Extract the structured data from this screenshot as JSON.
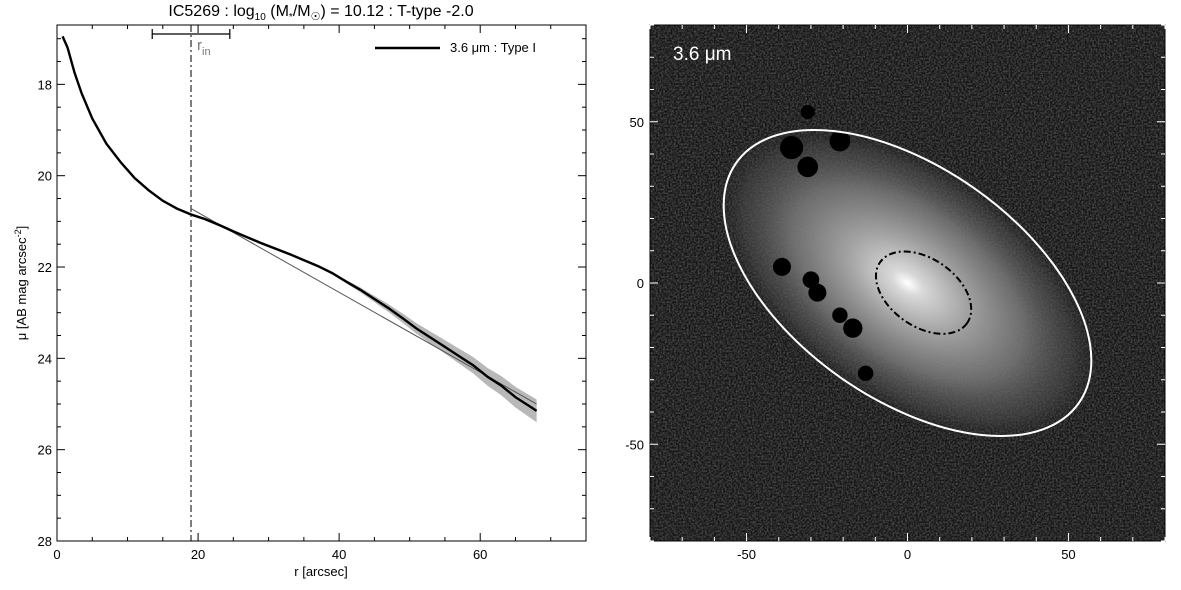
{
  "chart_data": [
    {
      "type": "line",
      "title_main": "IC5269 : log",
      "title_sub": "10",
      "title_rest_a": " (M",
      "title_star": "*",
      "title_rest_b": "/M",
      "title_sun": "☉",
      "title_rest_c": ") = 10.12 : T-type -2.0",
      "xlabel": "r [arcsec]",
      "ylabel_main": "μ [AB mag arcsec",
      "ylabel_sup": "-2",
      "ylabel_end": "]",
      "xlim": [
        0,
        75
      ],
      "ylim": [
        28,
        16.7
      ],
      "y_inverted": true,
      "xticks": [
        0,
        20,
        40,
        60
      ],
      "yticks": [
        18,
        20,
        22,
        24,
        26,
        28
      ],
      "legend": {
        "label": "3.6 μm : Type I",
        "position": "top-right"
      },
      "r_in": {
        "value": 19,
        "label_main": "r",
        "label_sub": "in",
        "range": [
          13.5,
          24.5
        ]
      },
      "series": [
        {
          "name": "3.6 μm : Type I",
          "x": [
            0.8,
            1.5,
            2.5,
            3.5,
            5,
            7,
            9,
            11,
            13,
            15,
            17,
            19,
            21,
            23,
            25,
            27,
            29,
            31,
            33,
            35,
            37,
            39,
            41,
            43,
            45,
            47,
            49,
            51,
            53,
            55,
            57,
            59,
            61,
            63,
            65,
            67,
            68
          ],
          "values": [
            16.95,
            17.2,
            17.75,
            18.2,
            18.75,
            19.3,
            19.7,
            20.05,
            20.32,
            20.55,
            20.72,
            20.85,
            20.95,
            21.08,
            21.22,
            21.35,
            21.48,
            21.6,
            21.72,
            21.85,
            21.98,
            22.13,
            22.32,
            22.5,
            22.7,
            22.9,
            23.12,
            23.35,
            23.55,
            23.75,
            23.95,
            24.15,
            24.4,
            24.6,
            24.85,
            25.05,
            25.15
          ]
        }
      ],
      "fit_line": {
        "x": [
          19,
          68
        ],
        "values": [
          20.72,
          25.0
        ]
      }
    },
    {
      "type": "heatmap",
      "label": "3.6 μm",
      "xlim": [
        -80,
        80
      ],
      "ylim": [
        -80,
        80
      ],
      "xticks": [
        -50,
        0,
        50
      ],
      "yticks": [
        50,
        0,
        -50
      ],
      "outer_ellipse": {
        "cx": 0,
        "cy": 0,
        "a": 65,
        "b": 36,
        "pa_deg": -35,
        "color": "#ffffff"
      },
      "inner_ellipse": {
        "cx": 5,
        "cy": -3,
        "a": 16.5,
        "b": 10.5,
        "pa_deg": -35,
        "style": "dash-dot"
      },
      "masks": [
        {
          "x": -36,
          "y": 42,
          "r": 3.6
        },
        {
          "x": -21,
          "y": 44,
          "r": 3.2
        },
        {
          "x": -31,
          "y": 36,
          "r": 3.2
        },
        {
          "x": -39,
          "y": 5,
          "r": 2.8
        },
        {
          "x": -30,
          "y": 1,
          "r": 2.6
        },
        {
          "x": -28,
          "y": -3,
          "r": 2.8
        },
        {
          "x": -21,
          "y": -10,
          "r": 2.4
        },
        {
          "x": -17,
          "y": -14,
          "r": 3.0
        },
        {
          "x": -13,
          "y": -28,
          "r": 2.4
        },
        {
          "x": -31,
          "y": 53,
          "r": 2.2
        }
      ]
    }
  ]
}
